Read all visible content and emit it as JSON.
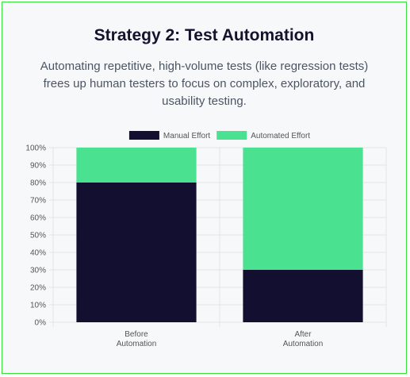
{
  "header": {
    "title": "Strategy 2: Test Automation",
    "description": "Automating repetitive, high-volume tests (like regression tests) frees up human testers to focus on complex, exploratory, and usability testing."
  },
  "colors": {
    "manual": "#130f31",
    "automated": "#4ae290",
    "grid": "#e3e3e3",
    "border": "#35e33a"
  },
  "chart_data": {
    "type": "bar",
    "stacked": true,
    "categories": [
      [
        "Before",
        "Automation"
      ],
      [
        "After",
        "Automation"
      ]
    ],
    "series": [
      {
        "name": "Manual Effort",
        "values": [
          80,
          30
        ]
      },
      {
        "name": "Automated Effort",
        "values": [
          20,
          70
        ]
      }
    ],
    "ylim": [
      0,
      100
    ],
    "yticks": [
      "0%",
      "10%",
      "20%",
      "30%",
      "40%",
      "50%",
      "60%",
      "70%",
      "80%",
      "90%",
      "100%"
    ],
    "grid": true,
    "legend": "top"
  }
}
